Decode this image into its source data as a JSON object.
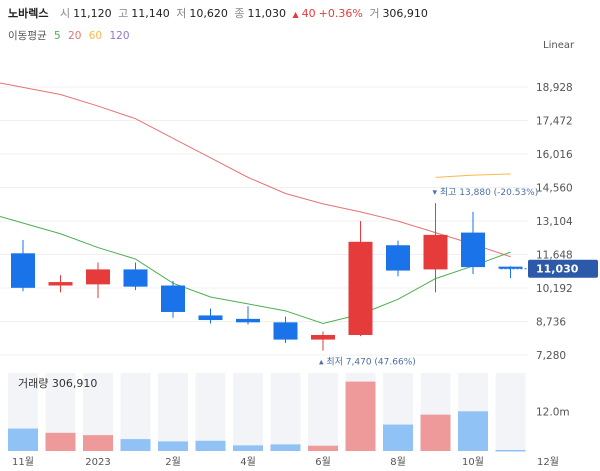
{
  "header": {
    "name": "노바렉스",
    "open_label": "시",
    "open": "11,120",
    "high_label": "고",
    "high": "11,140",
    "low_label": "저",
    "low": "10,620",
    "close_label": "종",
    "close": "11,030",
    "change_icon": "up-triangle-icon",
    "change": "40",
    "change_pct": "+0.36%",
    "volume_label": "거",
    "volume": "306,910"
  },
  "moving_average": {
    "label": "이동평균",
    "periods": [
      {
        "value": "5",
        "color": "#4caf50"
      },
      {
        "value": "20",
        "color": "#e57373"
      },
      {
        "value": "60",
        "color": "#ffb74d"
      },
      {
        "value": "120",
        "color": "#9575cd"
      }
    ]
  },
  "scale_label": "Linear",
  "colors": {
    "up": "#e63b3b",
    "down": "#1a73e8",
    "up_vol": "#ef9a9a",
    "down_vol": "#90c2f5",
    "band": "#f2f4f8"
  },
  "chart_data": {
    "type": "candlestick",
    "categories": [
      "2022-11",
      "2022-12",
      "2023-01",
      "2023-02",
      "2023-03",
      "2023-04",
      "2023-05",
      "2023-06",
      "2023-07",
      "2023-08",
      "2023-09",
      "2023-10",
      "2023-11",
      "2023-12"
    ],
    "x_tick_labels": [
      "11월",
      "2023",
      "2월",
      "4월",
      "6월",
      "8월",
      "10월",
      "12월"
    ],
    "y_ticks": [
      "18,928",
      "17,472",
      "16,016",
      "14,560",
      "13,104",
      "11,648",
      "10,192",
      "8,736",
      "7,280"
    ],
    "ylim": [
      7280,
      18928
    ],
    "ohlc": [
      {
        "open": 11700,
        "high": 12280,
        "low": 10050,
        "close": 10200
      },
      {
        "open": 10300,
        "high": 10750,
        "low": 10000,
        "close": 10450
      },
      {
        "open": 10350,
        "high": 11300,
        "low": 9750,
        "close": 11000
      },
      {
        "open": 11000,
        "high": 11300,
        "low": 10100,
        "close": 10250
      },
      {
        "open": 10300,
        "high": 10500,
        "low": 8900,
        "close": 9150
      },
      {
        "open": 9000,
        "high": 9300,
        "low": 8650,
        "close": 8800
      },
      {
        "open": 8850,
        "high": 9400,
        "low": 8600,
        "close": 8700
      },
      {
        "open": 8700,
        "high": 8950,
        "low": 7800,
        "close": 7950
      },
      {
        "open": 7950,
        "high": 8300,
        "low": 7470,
        "close": 8150
      },
      {
        "open": 8150,
        "high": 13100,
        "low": 8100,
        "close": 12200
      },
      {
        "open": 12050,
        "high": 12250,
        "low": 10700,
        "close": 10950
      },
      {
        "open": 11000,
        "high": 13880,
        "low": 10000,
        "close": 12500
      },
      {
        "open": 12600,
        "high": 13500,
        "low": 10800,
        "close": 11100
      },
      {
        "open": 11120,
        "high": 11140,
        "low": 10620,
        "close": 11030
      }
    ],
    "ma5": [
      13300,
      12550,
      11950,
      11450,
      10400,
      9800,
      9500,
      9200,
      8650,
      9050,
      9700,
      10600,
      11150,
      11750
    ],
    "ma20": [
      19100,
      18600,
      18100,
      17550,
      16700,
      15850,
      15000,
      14300,
      13850,
      13500,
      13100,
      12600,
      12100,
      11550
    ],
    "ma60": [
      null,
      null,
      null,
      null,
      null,
      null,
      null,
      null,
      null,
      null,
      null,
      15000,
      15100,
      15150
    ],
    "volume": [
      6800,
      5500,
      4800,
      3600,
      2900,
      3100,
      1700,
      2000,
      1600,
      21000,
      8000,
      11000,
      12000,
      306.91
    ],
    "volume_label": "거래량",
    "volume_value": "306,910",
    "volume_ytick": "12.0m",
    "current_price": "11,030",
    "high_marker": {
      "label": "최고",
      "value": "13,880",
      "pct": "(-20.53%)",
      "index": 11
    },
    "low_marker": {
      "label": "최저",
      "value": "7,470",
      "pct": "(47.66%)",
      "index": 8
    }
  }
}
